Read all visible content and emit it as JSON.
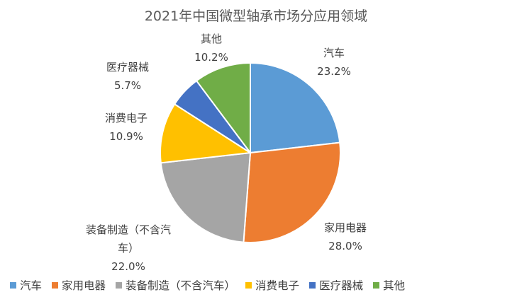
{
  "chart_data": {
    "type": "pie",
    "title": "2021年中国微型轴承市场分应用领域",
    "categories": [
      "汽车",
      "家用电器",
      "装备制造（不含汽车）",
      "消费电子",
      "医疗器械",
      "其他"
    ],
    "values": [
      23.2,
      28.0,
      22.0,
      10.9,
      5.7,
      10.2
    ],
    "value_labels": [
      "23.2%",
      "28.0%",
      "22.0%",
      "10.9%",
      "5.7%",
      "10.2%"
    ],
    "colors": [
      "#5B9BD5",
      "#ED7D31",
      "#A5A5A5",
      "#FFC000",
      "#4472C4",
      "#70AD47"
    ],
    "legend_position": "bottom"
  }
}
